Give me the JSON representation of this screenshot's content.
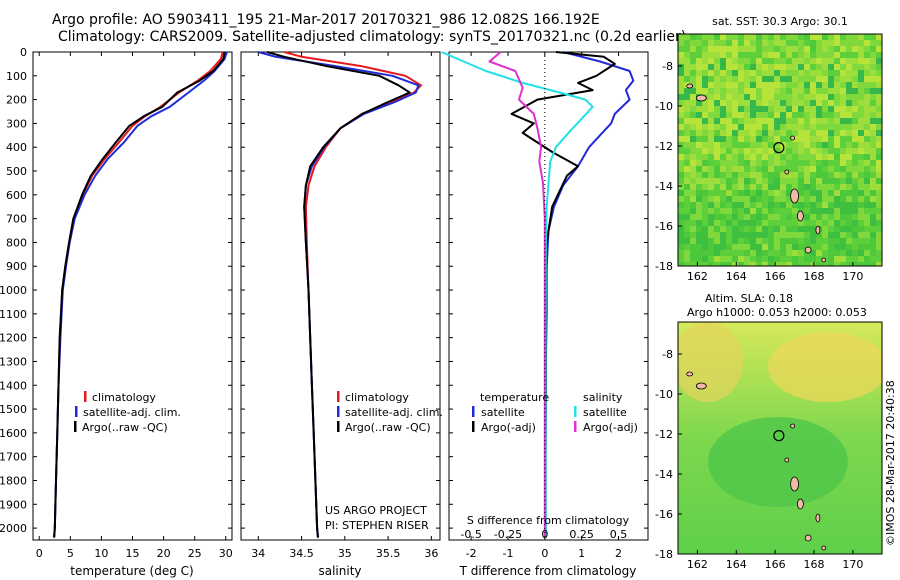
{
  "header": {
    "title_line1": "Argo profile: AO 5903411_195 21-Mar-2017 20170321_986 12.082S 166.192E",
    "title_line2": "Climatology: CARS2009. Satellite-adjusted climatology: synTS_20170321.nc (0.2d earlier)"
  },
  "colors": {
    "climatology": "#e41a1c",
    "satellite": "#1f2bd6",
    "argo": "#000000",
    "sat_salinity": "#22e0e8",
    "argo_salinity": "#e030d0",
    "land": "#f2b8a8"
  },
  "depth_axis": {
    "ylim": [
      0,
      2050
    ],
    "ticks": [
      0,
      100,
      200,
      300,
      400,
      500,
      600,
      700,
      800,
      900,
      1000,
      1100,
      1200,
      1300,
      1400,
      1500,
      1600,
      1700,
      1800,
      1900,
      2000
    ]
  },
  "chart_data": [
    {
      "type": "line",
      "name": "temperature-profile",
      "xlabel": "temperature (deg C)",
      "xlim": [
        -1,
        31
      ],
      "xticks": [
        0,
        5,
        10,
        15,
        20,
        25,
        30
      ],
      "legend": [
        "climatology",
        "satellite-adj. clim.",
        "Argo(..raw -QC)"
      ],
      "series": [
        {
          "name": "climatology",
          "x": [
            29.5,
            29.2,
            27.5,
            25.5,
            22.5,
            19.5,
            17,
            15,
            12.8,
            10.5,
            8.5,
            7,
            5.5,
            4.8,
            4.2,
            3.7,
            3.3,
            3.1,
            2.9,
            2.7,
            2.6,
            2.5,
            2.4
          ],
          "y": [
            0,
            30,
            80,
            120,
            170,
            230,
            270,
            310,
            380,
            450,
            520,
            600,
            700,
            800,
            900,
            1000,
            1200,
            1400,
            1600,
            1800,
            1900,
            2000,
            2040
          ]
        },
        {
          "name": "satellite-adj. clim.",
          "x": [
            30.2,
            29.8,
            28.2,
            26.5,
            24,
            21,
            18,
            15.8,
            13.6,
            11,
            9,
            7.3,
            5.7,
            4.9,
            4.3,
            3.8,
            3.4,
            3.1,
            2.9,
            2.7,
            2.6,
            2.5,
            2.4
          ],
          "y": [
            0,
            30,
            80,
            120,
            170,
            230,
            270,
            310,
            380,
            450,
            520,
            600,
            700,
            800,
            900,
            1000,
            1200,
            1400,
            1600,
            1800,
            1900,
            2000,
            2040
          ]
        },
        {
          "name": "Argo(..raw -QC)",
          "x": [
            29.8,
            29.6,
            28,
            25.8,
            22.2,
            19.8,
            16.8,
            14.5,
            12.3,
            10.2,
            8.3,
            6.9,
            5.5,
            4.8,
            4.2,
            3.7,
            3.3,
            3.1,
            2.9,
            2.7,
            2.6,
            2.5,
            2.4
          ],
          "y": [
            0,
            30,
            80,
            120,
            170,
            230,
            270,
            310,
            380,
            450,
            520,
            600,
            700,
            800,
            900,
            1000,
            1200,
            1400,
            1600,
            1800,
            1900,
            2000,
            2040
          ]
        }
      ]
    },
    {
      "type": "line",
      "name": "salinity-profile",
      "xlabel": "salinity",
      "xlim": [
        33.8,
        36.1
      ],
      "xticks": [
        34,
        34.5,
        35,
        35.5,
        36
      ],
      "legend": [
        "climatology",
        "satellite-adj. clim.",
        "Argo(..raw -QC)"
      ],
      "annotation": [
        "US ARGO PROJECT",
        "PI: STEPHEN RISER"
      ],
      "series": [
        {
          "name": "climatology",
          "x": [
            34.3,
            34.5,
            35.2,
            35.7,
            35.88,
            35.8,
            35.55,
            35.2,
            34.95,
            34.78,
            34.65,
            34.58,
            34.55,
            34.56,
            34.58,
            34.6,
            34.62,
            34.64,
            34.66,
            34.68,
            34.69
          ],
          "y": [
            0,
            20,
            60,
            100,
            140,
            170,
            210,
            260,
            320,
            400,
            480,
            560,
            650,
            800,
            1000,
            1200,
            1400,
            1600,
            1800,
            2000,
            2040
          ]
        },
        {
          "name": "satellite-adj. clim.",
          "x": [
            34.0,
            34.2,
            34.9,
            35.55,
            35.85,
            35.82,
            35.58,
            35.22,
            34.95,
            34.76,
            34.62,
            34.55,
            34.53,
            34.55,
            34.58,
            34.6,
            34.62,
            34.64,
            34.66,
            34.68,
            34.69
          ],
          "y": [
            0,
            20,
            60,
            100,
            140,
            170,
            210,
            260,
            320,
            400,
            480,
            560,
            650,
            800,
            1000,
            1200,
            1400,
            1600,
            1800,
            2000,
            2040
          ]
        },
        {
          "name": "Argo(..raw -QC)",
          "x": [
            34.1,
            34.3,
            34.8,
            35.4,
            35.62,
            35.75,
            35.5,
            35.2,
            34.95,
            34.75,
            34.6,
            34.55,
            34.53,
            34.55,
            34.58,
            34.6,
            34.62,
            34.64,
            34.66,
            34.68,
            34.69
          ],
          "y": [
            0,
            20,
            60,
            100,
            140,
            170,
            210,
            260,
            320,
            400,
            480,
            560,
            650,
            800,
            1000,
            1200,
            1400,
            1600,
            1800,
            2000,
            2040
          ]
        }
      ]
    },
    {
      "type": "line",
      "name": "difference-profile",
      "xlabel": "T difference from climatology",
      "xlabel_top": "S difference from climatology",
      "xlim": [
        -2.6,
        2.8
      ],
      "xticks": [
        -2,
        -1,
        0,
        1,
        2
      ],
      "xticks_top": [
        -0.5,
        -0.25,
        0,
        0.25,
        0.5
      ],
      "legend_left_title": "temperature",
      "legend_left": [
        "satellite",
        "Argo(-adj)"
      ],
      "legend_right_title": "salinity",
      "legend_right": [
        "satellite",
        "Argo(-adj)"
      ],
      "series": [
        {
          "name": "temperature satellite",
          "x": [
            0.5,
            1.5,
            2.3,
            2.4,
            2.2,
            2.3,
            1.9,
            1.8,
            1.2,
            0.9,
            0.5,
            0.25,
            0.1,
            0.05,
            0.05,
            0.03,
            0.03,
            0.02,
            0.02,
            0.02
          ],
          "y": [
            0,
            40,
            80,
            120,
            160,
            200,
            260,
            300,
            400,
            480,
            560,
            650,
            750,
            900,
            1100,
            1300,
            1500,
            1700,
            1900,
            2040
          ]
        },
        {
          "name": "temperature Argo(-adj)",
          "x": [
            0.3,
            1.6,
            1.9,
            1.4,
            0.9,
            1.3,
            -0.2,
            -0.9,
            -0.3,
            -0.6,
            0.2,
            0.9,
            0.6,
            0.2,
            0.05,
            0.02,
            0.03,
            0.02,
            0.02,
            0.02
          ],
          "y": [
            0,
            20,
            50,
            100,
            130,
            160,
            200,
            260,
            300,
            340,
            420,
            480,
            520,
            650,
            800,
            1000,
            1300,
            1600,
            1900,
            2040
          ]
        },
        {
          "name": "salinity satellite",
          "x": [
            -2.8,
            -1.6,
            -0.6,
            0.4,
            1.1,
            1.3,
            1.0,
            0.7,
            0.3,
            0.15,
            0.1,
            0.05,
            0.03,
            0.02,
            0.02,
            0.02
          ],
          "y": [
            0,
            80,
            130,
            170,
            200,
            230,
            280,
            330,
            400,
            460,
            550,
            650,
            800,
            1100,
            1500,
            2040
          ]
        },
        {
          "name": "salinity Argo(-adj)",
          "x": [
            -1.2,
            -1.5,
            -0.8,
            -0.6,
            -0.7,
            -0.3,
            -0.2,
            -0.1,
            -0.15,
            -0.05,
            0,
            0,
            0,
            0
          ],
          "y": [
            0,
            40,
            80,
            150,
            200,
            260,
            320,
            400,
            460,
            550,
            700,
            1000,
            1500,
            2040
          ]
        }
      ]
    },
    {
      "type": "heatmap",
      "name": "sst-map",
      "title": "sat. SST: 30.3 Argo: 30.1",
      "xticks": [
        162,
        164,
        166,
        168,
        170
      ],
      "yticks": [
        -8,
        -10,
        -12,
        -14,
        -16,
        -18
      ],
      "xlim": [
        161,
        171.5
      ],
      "ylim": [
        -18,
        -6.4
      ],
      "argo_position": [
        166.192,
        -12.082
      ]
    },
    {
      "type": "heatmap",
      "name": "sla-map",
      "title": "Altim. SLA: 0.18",
      "subtitle": "Argo h1000: 0.053 h2000: 0.053",
      "xticks": [
        162,
        164,
        166,
        168,
        170
      ],
      "yticks": [
        -8,
        -10,
        -12,
        -14,
        -16,
        -18
      ],
      "xlim": [
        161,
        171.5
      ],
      "ylim": [
        -18,
        -6.4
      ],
      "argo_position": [
        166.192,
        -12.082
      ]
    }
  ],
  "credit": "©IMOS 28-Mar-2017 20:40:38"
}
